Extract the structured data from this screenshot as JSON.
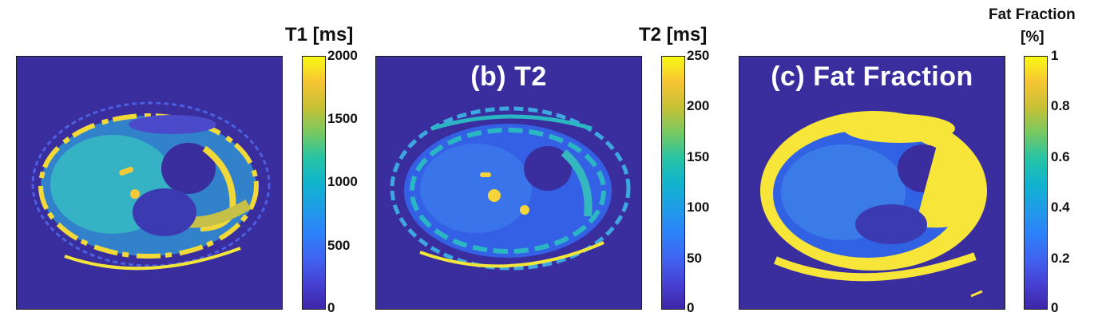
{
  "panels": [
    {
      "id": "t1",
      "label": "",
      "colorbar_title": "T1 [ms]",
      "colorbar_ticks": [
        "2000",
        "1500",
        "1000",
        "500",
        "0"
      ],
      "colorbar_range": [
        0,
        2000
      ]
    },
    {
      "id": "t2",
      "label": "(b) T2",
      "colorbar_title": "T2 [ms]",
      "colorbar_ticks": [
        "250",
        "200",
        "150",
        "100",
        "50",
        "0"
      ],
      "colorbar_range": [
        0,
        250
      ]
    },
    {
      "id": "ff",
      "label": "(c) Fat Fraction",
      "colorbar_title_line1": "Fat Fraction",
      "colorbar_title_line2": "[%]",
      "colorbar_ticks": [
        "1",
        "0.8",
        "0.6",
        "0.4",
        "0.2",
        "0"
      ],
      "colorbar_range": [
        0,
        1
      ]
    }
  ],
  "colors": {
    "background_map": "#3a2d9e",
    "parula_low": "#3e26a8",
    "parula_high": "#f9f915"
  }
}
